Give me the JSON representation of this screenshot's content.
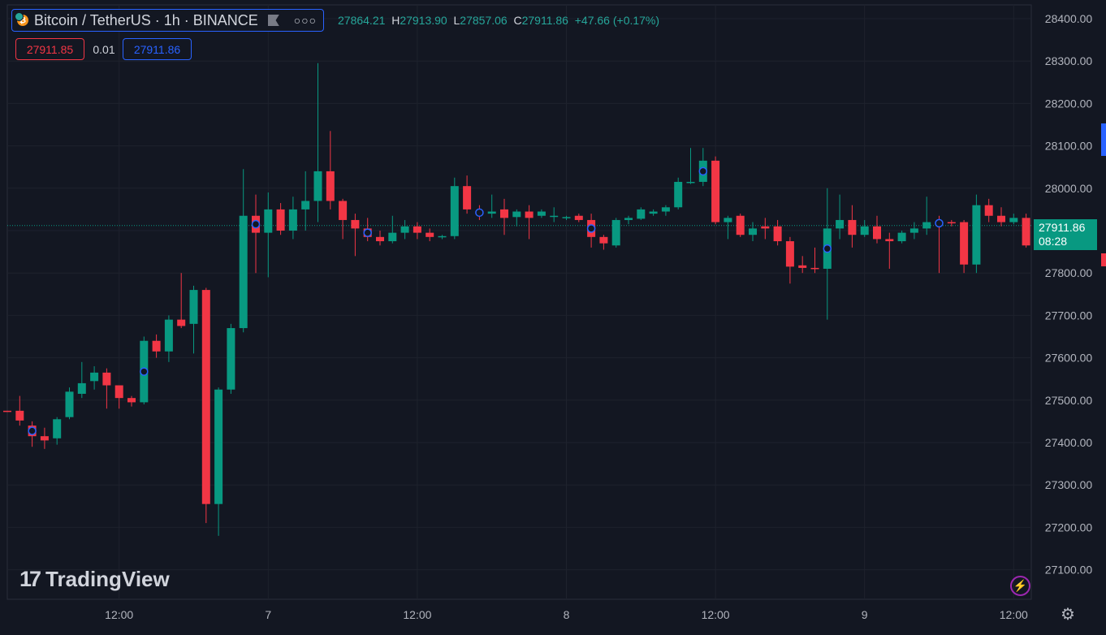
{
  "header": {
    "symbol": "Bitcoin / TetherUS · 1h · BINANCE",
    "more": "○○○",
    "open_value": "27864.21",
    "high_label": "H",
    "high_value": "27913.90",
    "low_label": "L",
    "low_value": "27857.06",
    "close_label": "C",
    "close_value": "27911.86",
    "change": "+47.66 (+0.17%)",
    "bid": "27911.85",
    "spread": "0.01",
    "ask": "27911.86"
  },
  "last_price": {
    "price": "27911.86",
    "countdown": "08:28"
  },
  "branding": {
    "logo_mark": "17",
    "logo_text": "TradingView"
  },
  "icons": {
    "coin": "bitcoin-icon",
    "flag": "flag-icon",
    "bolt": "lightning-icon",
    "settings": "gear-icon"
  },
  "colors": {
    "up": "#089981",
    "down": "#f23645",
    "background": "#131722",
    "grid": "#1e222d",
    "ask": "#2962ff",
    "marker": "#2962ff"
  },
  "chart_data": {
    "type": "candlestick",
    "interval": "1h",
    "symbol": "BTCUSDT",
    "ylim": [
      27050,
      28440
    ],
    "y_ticks": [
      "28400.00",
      "28300.00",
      "28200.00",
      "28100.00",
      "28000.00",
      "27900.00",
      "27800.00",
      "27700.00",
      "27600.00",
      "27500.00",
      "27400.00",
      "27300.00",
      "27200.00",
      "27100.00"
    ],
    "x_ticks": [
      {
        "label": "12:00",
        "index": 9
      },
      {
        "label": "7",
        "index": 21
      },
      {
        "label": "12:00",
        "index": 33
      },
      {
        "label": "8",
        "index": 45
      },
      {
        "label": "12:00",
        "index": 57
      },
      {
        "label": "9",
        "index": 69
      },
      {
        "label": "12:00",
        "index": 81
      }
    ],
    "last_price": 27911.86,
    "candles": [
      {
        "o": 27475,
        "h": 27475,
        "l": 27472,
        "c": 27473
      },
      {
        "o": 27475,
        "h": 27510,
        "l": 27440,
        "c": 27452
      },
      {
        "o": 27440,
        "h": 27450,
        "l": 27390,
        "c": 27415
      },
      {
        "o": 27415,
        "h": 27435,
        "l": 27385,
        "c": 27405
      },
      {
        "o": 27410,
        "h": 27460,
        "l": 27395,
        "c": 27455
      },
      {
        "o": 27460,
        "h": 27530,
        "l": 27455,
        "c": 27520
      },
      {
        "o": 27515,
        "h": 27590,
        "l": 27505,
        "c": 27540
      },
      {
        "o": 27545,
        "h": 27580,
        "l": 27525,
        "c": 27565
      },
      {
        "o": 27565,
        "h": 27575,
        "l": 27480,
        "c": 27535
      },
      {
        "o": 27535,
        "h": 27535,
        "l": 27480,
        "c": 27505
      },
      {
        "o": 27505,
        "h": 27510,
        "l": 27485,
        "c": 27495
      },
      {
        "o": 27495,
        "h": 27650,
        "l": 27490,
        "c": 27640
      },
      {
        "o": 27640,
        "h": 27655,
        "l": 27600,
        "c": 27615
      },
      {
        "o": 27615,
        "h": 27700,
        "l": 27590,
        "c": 27690
      },
      {
        "o": 27690,
        "h": 27800,
        "l": 27670,
        "c": 27675
      },
      {
        "o": 27680,
        "h": 27770,
        "l": 27610,
        "c": 27760
      },
      {
        "o": 27760,
        "h": 27765,
        "l": 27210,
        "c": 27255
      },
      {
        "o": 27255,
        "h": 27530,
        "l": 27180,
        "c": 27525
      },
      {
        "o": 27525,
        "h": 27680,
        "l": 27515,
        "c": 27670
      },
      {
        "o": 27670,
        "h": 28045,
        "l": 27660,
        "c": 27935
      },
      {
        "o": 27935,
        "h": 27985,
        "l": 27800,
        "c": 27895
      },
      {
        "o": 27895,
        "h": 27990,
        "l": 27790,
        "c": 27950
      },
      {
        "o": 27950,
        "h": 27965,
        "l": 27890,
        "c": 27900
      },
      {
        "o": 27900,
        "h": 27980,
        "l": 27880,
        "c": 27950
      },
      {
        "o": 27950,
        "h": 28040,
        "l": 27900,
        "c": 27970
      },
      {
        "o": 27970,
        "h": 28295,
        "l": 27920,
        "c": 28040
      },
      {
        "o": 28040,
        "h": 28135,
        "l": 27950,
        "c": 27970
      },
      {
        "o": 27970,
        "h": 27975,
        "l": 27880,
        "c": 27925
      },
      {
        "o": 27925,
        "h": 27940,
        "l": 27840,
        "c": 27905
      },
      {
        "o": 27905,
        "h": 27930,
        "l": 27875,
        "c": 27885
      },
      {
        "o": 27885,
        "h": 27900,
        "l": 27865,
        "c": 27875
      },
      {
        "o": 27875,
        "h": 27935,
        "l": 27870,
        "c": 27895
      },
      {
        "o": 27895,
        "h": 27925,
        "l": 27880,
        "c": 27910
      },
      {
        "o": 27910,
        "h": 27920,
        "l": 27880,
        "c": 27895
      },
      {
        "o": 27895,
        "h": 27905,
        "l": 27875,
        "c": 27885
      },
      {
        "o": 27885,
        "h": 27890,
        "l": 27880,
        "c": 27887
      },
      {
        "o": 27887,
        "h": 28025,
        "l": 27880,
        "c": 28005
      },
      {
        "o": 28005,
        "h": 28030,
        "l": 27940,
        "c": 27950
      },
      {
        "o": 27945,
        "h": 27960,
        "l": 27925,
        "c": 27940
      },
      {
        "o": 27940,
        "h": 27985,
        "l": 27930,
        "c": 27945
      },
      {
        "o": 27950,
        "h": 27975,
        "l": 27890,
        "c": 27930
      },
      {
        "o": 27932,
        "h": 27950,
        "l": 27910,
        "c": 27945
      },
      {
        "o": 27945,
        "h": 27960,
        "l": 27880,
        "c": 27930
      },
      {
        "o": 27935,
        "h": 27950,
        "l": 27930,
        "c": 27945
      },
      {
        "o": 27935,
        "h": 27955,
        "l": 27920,
        "c": 27935
      },
      {
        "o": 27930,
        "h": 27935,
        "l": 27925,
        "c": 27932
      },
      {
        "o": 27935,
        "h": 27940,
        "l": 27920,
        "c": 27925
      },
      {
        "o": 27925,
        "h": 27940,
        "l": 27860,
        "c": 27885
      },
      {
        "o": 27885,
        "h": 27890,
        "l": 27855,
        "c": 27870
      },
      {
        "o": 27865,
        "h": 27930,
        "l": 27860,
        "c": 27925
      },
      {
        "o": 27925,
        "h": 27935,
        "l": 27915,
        "c": 27930
      },
      {
        "o": 27928,
        "h": 27955,
        "l": 27925,
        "c": 27950
      },
      {
        "o": 27940,
        "h": 27950,
        "l": 27935,
        "c": 27945
      },
      {
        "o": 27945,
        "h": 27960,
        "l": 27935,
        "c": 27955
      },
      {
        "o": 27955,
        "h": 28025,
        "l": 27950,
        "c": 28015
      },
      {
        "o": 28013,
        "h": 28095,
        "l": 28010,
        "c": 28015
      },
      {
        "o": 28015,
        "h": 28095,
        "l": 28005,
        "c": 28065
      },
      {
        "o": 28065,
        "h": 28075,
        "l": 27915,
        "c": 27920
      },
      {
        "o": 27920,
        "h": 27935,
        "l": 27880,
        "c": 27930
      },
      {
        "o": 27935,
        "h": 27940,
        "l": 27885,
        "c": 27890
      },
      {
        "o": 27890,
        "h": 27920,
        "l": 27875,
        "c": 27905
      },
      {
        "o": 27910,
        "h": 27930,
        "l": 27880,
        "c": 27905
      },
      {
        "o": 27910,
        "h": 27925,
        "l": 27865,
        "c": 27875
      },
      {
        "o": 27875,
        "h": 27885,
        "l": 27775,
        "c": 27815
      },
      {
        "o": 27818,
        "h": 27840,
        "l": 27800,
        "c": 27812
      },
      {
        "o": 27812,
        "h": 27860,
        "l": 27800,
        "c": 27810
      },
      {
        "o": 27810,
        "h": 28000,
        "l": 27690,
        "c": 27905
      },
      {
        "o": 27905,
        "h": 27985,
        "l": 27880,
        "c": 27925
      },
      {
        "o": 27925,
        "h": 27960,
        "l": 27860,
        "c": 27890
      },
      {
        "o": 27890,
        "h": 27925,
        "l": 27885,
        "c": 27910
      },
      {
        "o": 27910,
        "h": 27935,
        "l": 27870,
        "c": 27880
      },
      {
        "o": 27880,
        "h": 27895,
        "l": 27810,
        "c": 27875
      },
      {
        "o": 27875,
        "h": 27900,
        "l": 27870,
        "c": 27895
      },
      {
        "o": 27895,
        "h": 27920,
        "l": 27880,
        "c": 27905
      },
      {
        "o": 27905,
        "h": 27980,
        "l": 27890,
        "c": 27920
      },
      {
        "o": 27920,
        "h": 27935,
        "l": 27800,
        "c": 27915
      },
      {
        "o": 27920,
        "h": 27925,
        "l": 27910,
        "c": 27918
      },
      {
        "o": 27920,
        "h": 27925,
        "l": 27800,
        "c": 27820
      },
      {
        "o": 27820,
        "h": 27985,
        "l": 27800,
        "c": 27960
      },
      {
        "o": 27960,
        "h": 27975,
        "l": 27920,
        "c": 27935
      },
      {
        "o": 27935,
        "h": 27955,
        "l": 27910,
        "c": 27920
      },
      {
        "o": 27920,
        "h": 27940,
        "l": 27915,
        "c": 27930
      },
      {
        "o": 27930,
        "h": 27940,
        "l": 27860,
        "c": 27865
      },
      {
        "o": 27864.21,
        "h": 27913.9,
        "l": 27857.06,
        "c": 27911.86
      }
    ],
    "markers": [
      2,
      11,
      20,
      29,
      38,
      47,
      56,
      66,
      75
    ]
  }
}
